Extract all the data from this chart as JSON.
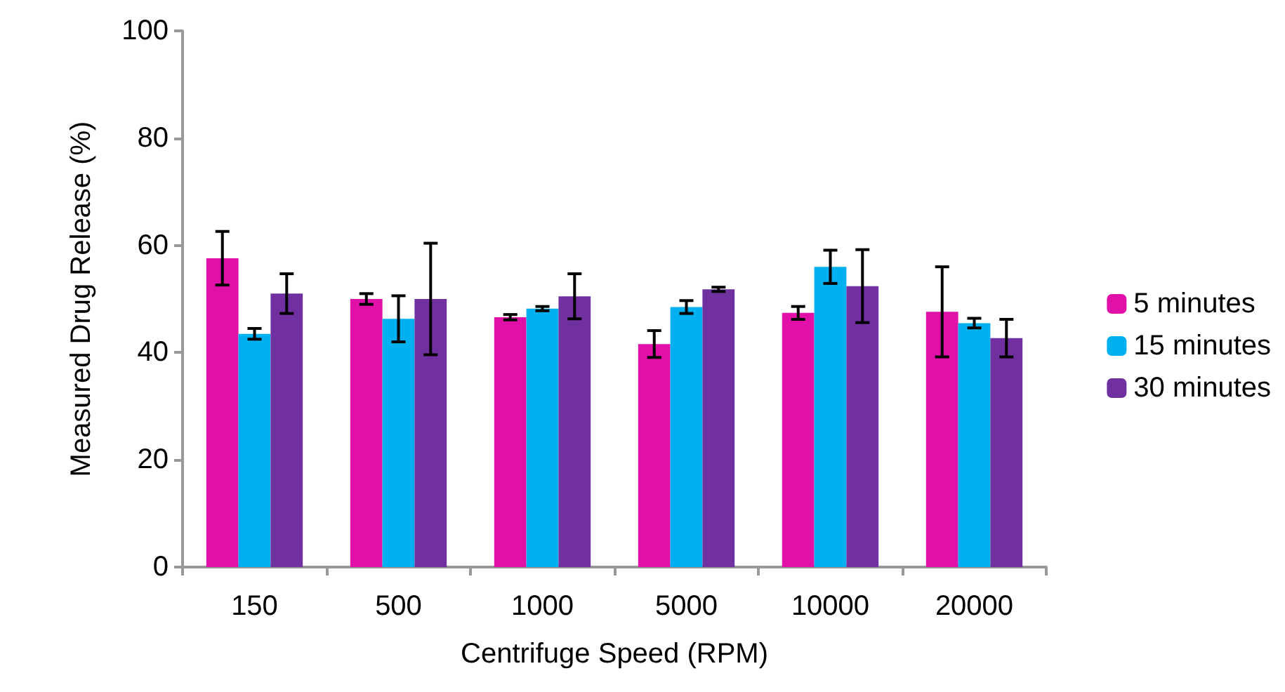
{
  "chart_data": {
    "type": "bar",
    "xlabel": "Centrifuge Speed (RPM)",
    "ylabel": "Measured Drug Release (%)",
    "categories": [
      "150",
      "500",
      "1000",
      "5000",
      "10000",
      "20000"
    ],
    "series": [
      {
        "name": "5 minutes",
        "color": "#e010a8",
        "values": [
          57.6,
          50.0,
          46.6,
          41.6,
          47.4,
          47.6
        ],
        "errors": [
          5.0,
          1.0,
          0.5,
          2.5,
          1.2,
          8.4
        ]
      },
      {
        "name": "15 minutes",
        "color": "#00b0f0",
        "values": [
          43.5,
          46.3,
          48.2,
          48.5,
          56.0,
          45.5
        ],
        "errors": [
          1.0,
          4.3,
          0.4,
          1.2,
          3.1,
          0.9
        ]
      },
      {
        "name": "30 minutes",
        "color": "#7030a0",
        "values": [
          51.0,
          50.0,
          50.5,
          51.8,
          52.4,
          42.7
        ],
        "errors": [
          3.7,
          10.4,
          4.2,
          0.4,
          6.8,
          3.5
        ]
      }
    ],
    "ylim": [
      0,
      100
    ],
    "yticks": [
      0,
      20,
      40,
      60,
      80,
      100
    ],
    "grid": false,
    "legend": "right"
  }
}
